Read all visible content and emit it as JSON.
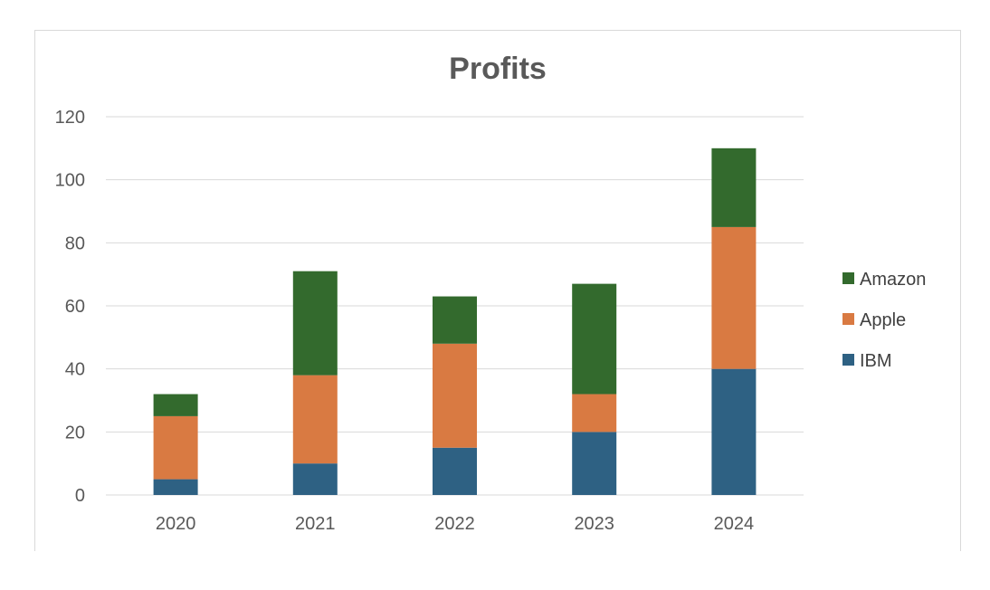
{
  "chart_data": {
    "type": "bar",
    "stacked": true,
    "title": "Profits",
    "xlabel": "",
    "ylabel": "",
    "categories": [
      "2020",
      "2021",
      "2022",
      "2023",
      "2024"
    ],
    "ylim": [
      0,
      120
    ],
    "yticks": [
      0,
      20,
      40,
      60,
      80,
      100,
      120
    ],
    "grid": true,
    "legend_position": "right",
    "series": [
      {
        "name": "IBM",
        "color": "#2e6183",
        "values": [
          5,
          10,
          15,
          20,
          40
        ]
      },
      {
        "name": "Apple",
        "color": "#d97a42",
        "values": [
          20,
          28,
          33,
          12,
          45
        ]
      },
      {
        "name": "Amazon",
        "color": "#336a2d",
        "values": [
          7,
          33,
          15,
          35,
          25
        ]
      }
    ]
  }
}
